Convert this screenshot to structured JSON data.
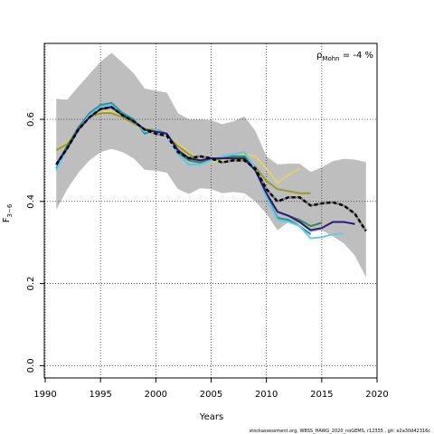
{
  "chart_data": {
    "type": "line",
    "xlabel": "Years",
    "ylabel": "F",
    "ylabel_sub": "3−6",
    "annotation": {
      "rho": "ρ",
      "sub": "Mohn",
      "text": " = -4 %"
    },
    "footnote": "stockassessment.org, WBSS_HAWG_2020_noGEMS, r12335 , git: e2a30d42316c",
    "xlim": [
      1990,
      2020
    ],
    "ylim": [
      -0.03,
      0.785
    ],
    "xticks": [
      1990,
      1995,
      2000,
      2005,
      2010,
      2015,
      2020
    ],
    "yticks": [
      {
        "value": 0,
        "label": "0.0"
      },
      0.2,
      0.4,
      0.6
    ],
    "grid": true,
    "x": [
      1991,
      1992,
      1993,
      1994,
      1995,
      1996,
      1997,
      1998,
      1999,
      2000,
      2001,
      2002,
      2003,
      2004,
      2005,
      2006,
      2007,
      2008,
      2009,
      2010,
      2011,
      2012,
      2013,
      2014,
      2015,
      2016,
      2017,
      2018,
      2019
    ],
    "band": {
      "color": "#bebebe",
      "upper": [
        0.65,
        0.648,
        0.68,
        0.71,
        0.74,
        0.762,
        0.738,
        0.712,
        0.675,
        0.67,
        0.665,
        0.615,
        0.6,
        0.6,
        0.598,
        0.588,
        0.595,
        0.607,
        0.572,
        0.51,
        0.49,
        0.492,
        0.492,
        0.472,
        0.483,
        0.498,
        0.504,
        0.502,
        0.496
      ],
      "lower": [
        0.38,
        0.43,
        0.47,
        0.5,
        0.52,
        0.528,
        0.52,
        0.505,
        0.477,
        0.475,
        0.47,
        0.43,
        0.418,
        0.432,
        0.43,
        0.42,
        0.423,
        0.42,
        0.4,
        0.37,
        0.33,
        0.35,
        0.345,
        0.325,
        0.33,
        0.315,
        0.298,
        0.268,
        0.215
      ]
    },
    "main": {
      "color": "#000000",
      "values": [
        0.49,
        0.53,
        0.575,
        0.605,
        0.625,
        0.63,
        0.61,
        0.595,
        0.575,
        0.565,
        0.56,
        0.52,
        0.505,
        0.51,
        0.505,
        0.495,
        0.5,
        0.5,
        0.48,
        0.43,
        0.4,
        0.41,
        0.41,
        0.39,
        0.395,
        0.398,
        0.39,
        0.37,
        0.328
      ]
    },
    "series": [
      {
        "color": "#e0d070",
        "values": [
          0.525,
          0.545,
          0.575,
          0.605,
          0.62,
          0.62,
          0.605,
          0.59,
          0.57,
          0.57,
          0.56,
          0.54,
          0.52,
          0.5,
          0.495,
          0.5,
          0.51,
          0.515,
          0.51,
          0.48,
          0.445,
          0.465,
          0.48,
          null,
          null,
          null,
          null,
          null,
          null
        ]
      },
      {
        "color": "#9a9a30",
        "values": [
          0.525,
          0.54,
          0.575,
          0.605,
          0.615,
          0.615,
          0.605,
          0.59,
          0.575,
          0.575,
          0.56,
          0.535,
          0.515,
          0.5,
          0.5,
          0.505,
          0.505,
          0.5,
          0.485,
          0.45,
          0.43,
          0.425,
          0.42,
          0.42,
          null,
          null,
          null,
          null,
          null
        ]
      },
      {
        "color": "#1a9a9a",
        "values": [
          0.48,
          0.535,
          0.58,
          0.615,
          0.635,
          0.64,
          0.615,
          0.6,
          0.565,
          0.575,
          0.565,
          0.515,
          0.49,
          0.49,
          0.5,
          0.51,
          0.515,
          0.52,
          0.48,
          0.41,
          0.36,
          0.355,
          0.34,
          0.32,
          null,
          null,
          null,
          null,
          null
        ]
      },
      {
        "color": "#2e8b57",
        "values": [
          0.49,
          0.535,
          0.58,
          0.605,
          0.625,
          0.63,
          0.61,
          0.595,
          0.57,
          0.575,
          0.56,
          0.52,
          0.5,
          0.495,
          0.5,
          0.505,
          0.51,
          0.51,
          0.48,
          0.415,
          0.375,
          0.365,
          0.355,
          0.34,
          0.348,
          null,
          null,
          null,
          null
        ]
      },
      {
        "color": "#6fc6e8",
        "values": [
          0.475,
          0.53,
          0.575,
          0.61,
          0.63,
          0.635,
          0.61,
          0.595,
          0.57,
          0.575,
          0.56,
          0.515,
          0.49,
          0.49,
          0.5,
          0.51,
          0.515,
          0.52,
          0.48,
          0.41,
          0.355,
          0.35,
          0.34,
          0.31,
          0.313,
          0.32,
          0.322,
          null,
          null
        ]
      },
      {
        "color": "#2a1a7a",
        "values": [
          0.49,
          0.53,
          0.575,
          0.605,
          0.625,
          0.63,
          0.61,
          0.595,
          0.575,
          0.57,
          0.565,
          0.525,
          0.505,
          0.5,
          0.505,
          0.505,
          0.505,
          0.505,
          0.475,
          0.42,
          0.375,
          0.365,
          0.35,
          0.33,
          0.335,
          0.35,
          0.35,
          0.345,
          null
        ]
      }
    ]
  }
}
